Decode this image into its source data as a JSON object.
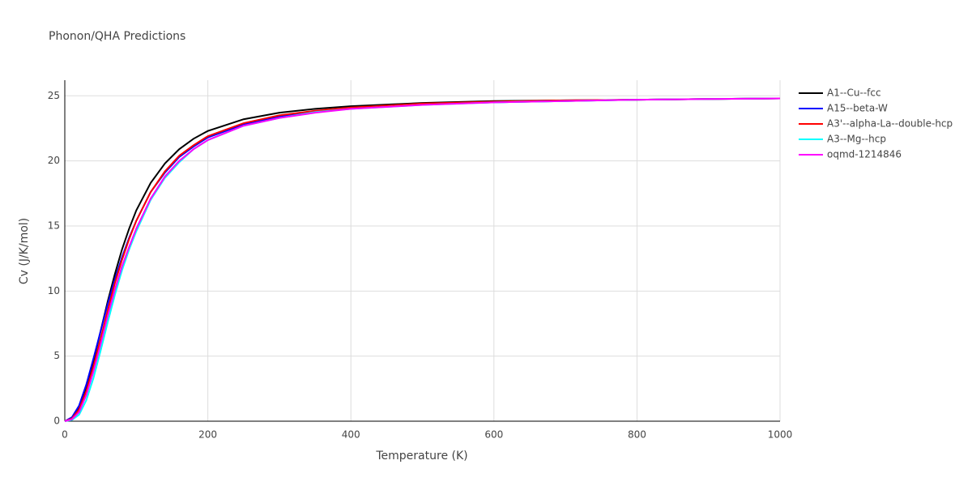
{
  "chart_data": {
    "type": "line",
    "title": "Phonon/QHA Predictions",
    "x_label": "Temperature (K)",
    "y_label": "Cv (J/K/mol)",
    "x": [
      0,
      10,
      20,
      30,
      40,
      50,
      60,
      70,
      80,
      90,
      100,
      120,
      140,
      160,
      180,
      200,
      250,
      300,
      350,
      400,
      500,
      600,
      700,
      800,
      900,
      1000
    ],
    "series": [
      {
        "name": "A1--Cu--fcc",
        "color": "#000000",
        "values": [
          0,
          0.2,
          1.0,
          2.6,
          4.6,
          6.9,
          9.2,
          11.3,
          13.2,
          14.8,
          16.2,
          18.3,
          19.8,
          20.9,
          21.7,
          22.3,
          23.2,
          23.7,
          24.0,
          24.2,
          24.45,
          24.6,
          24.65,
          24.7,
          24.75,
          24.8
        ]
      },
      {
        "name": "A15--beta-W",
        "color": "#0000ff",
        "values": [
          0,
          0.3,
          1.2,
          2.8,
          4.8,
          6.9,
          9.0,
          10.9,
          12.6,
          14.1,
          15.4,
          17.6,
          19.1,
          20.3,
          21.1,
          21.8,
          22.8,
          23.4,
          23.8,
          24.05,
          24.35,
          24.5,
          24.6,
          24.7,
          24.75,
          24.8
        ]
      },
      {
        "name": "A3'--alpha-La--double-hcp",
        "color": "#ff0000",
        "values": [
          0,
          0.2,
          0.9,
          2.3,
          4.2,
          6.3,
          8.5,
          10.6,
          12.4,
          14.0,
          15.4,
          17.6,
          19.2,
          20.4,
          21.2,
          21.9,
          22.9,
          23.5,
          23.85,
          24.1,
          24.4,
          24.55,
          24.65,
          24.7,
          24.75,
          24.8
        ]
      },
      {
        "name": "A3--Mg--hcp",
        "color": "#00ffff",
        "values": [
          0,
          0.1,
          0.5,
          1.6,
          3.3,
          5.4,
          7.6,
          9.7,
          11.6,
          13.2,
          14.6,
          17.0,
          18.7,
          19.9,
          20.9,
          21.6,
          22.7,
          23.3,
          23.75,
          24.0,
          24.3,
          24.5,
          24.6,
          24.7,
          24.75,
          24.8
        ]
      },
      {
        "name": "oqmd-1214846",
        "color": "#ff00ff",
        "values": [
          0,
          0.15,
          0.7,
          2.0,
          3.8,
          5.9,
          8.1,
          10.1,
          11.9,
          13.4,
          14.8,
          17.1,
          18.8,
          20.0,
          20.9,
          21.6,
          22.7,
          23.3,
          23.7,
          24.0,
          24.3,
          24.5,
          24.6,
          24.7,
          24.75,
          24.8
        ]
      }
    ],
    "xlim": [
      0,
      1000
    ],
    "xticks": [
      0,
      200,
      400,
      600,
      800,
      1000
    ],
    "ylim": [
      0,
      26.2
    ],
    "yticks": [
      0,
      5,
      10,
      15,
      20,
      25
    ],
    "grid": true
  }
}
